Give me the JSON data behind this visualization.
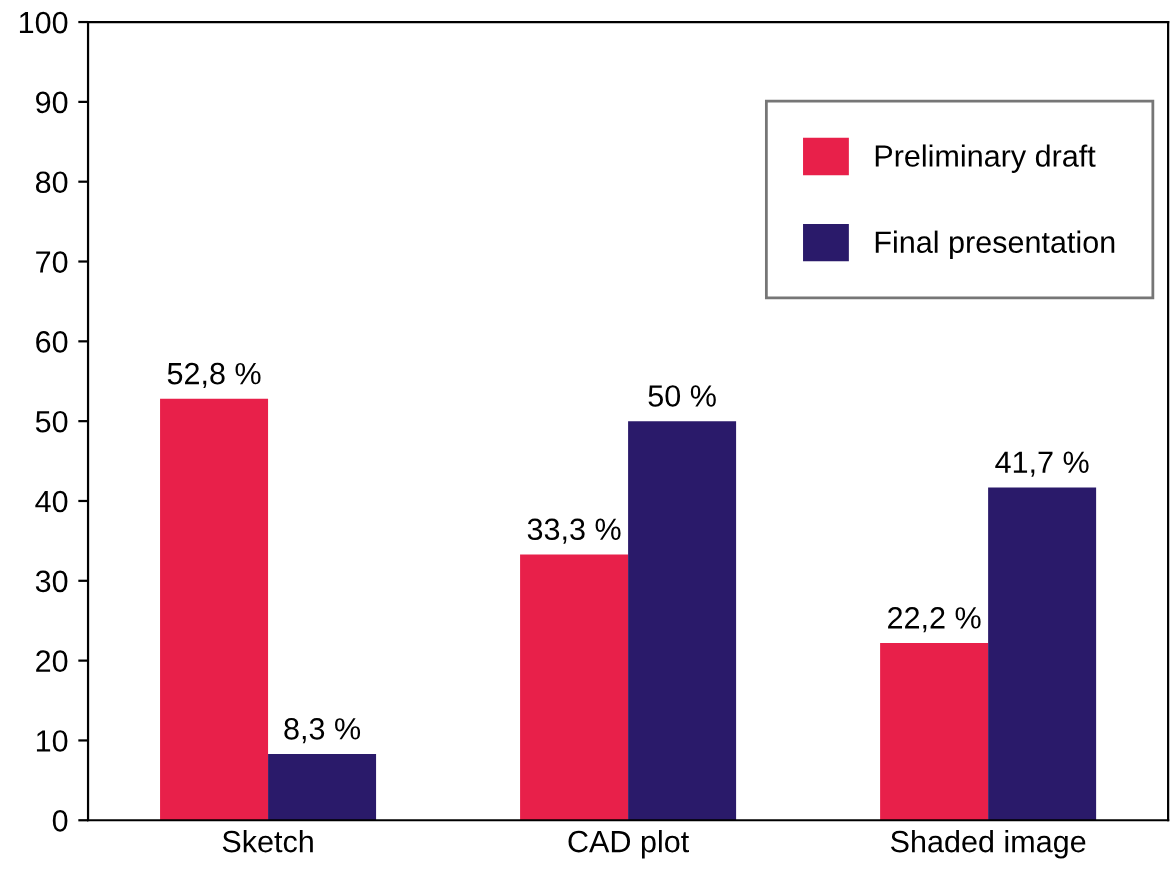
{
  "chart_data": {
    "type": "bar",
    "categories": [
      "Sketch",
      "CAD plot",
      "Shaded image"
    ],
    "series": [
      {
        "name": "Preliminary draft",
        "color": "#e8204a",
        "values": [
          52.8,
          33.3,
          22.2
        ],
        "value_labels": [
          "52,8 %",
          "33,3 %",
          "22,2 %"
        ]
      },
      {
        "name": "Final presentation",
        "color": "#2a1a6a",
        "values": [
          8.3,
          50,
          41.7
        ],
        "value_labels": [
          "8,3 %",
          "50 %",
          "41,7 %"
        ]
      }
    ],
    "ylim": [
      0,
      100
    ],
    "yticks": [
      0,
      10,
      20,
      30,
      40,
      50,
      60,
      70,
      80,
      90,
      100
    ],
    "grid": false,
    "legend": "top right"
  }
}
